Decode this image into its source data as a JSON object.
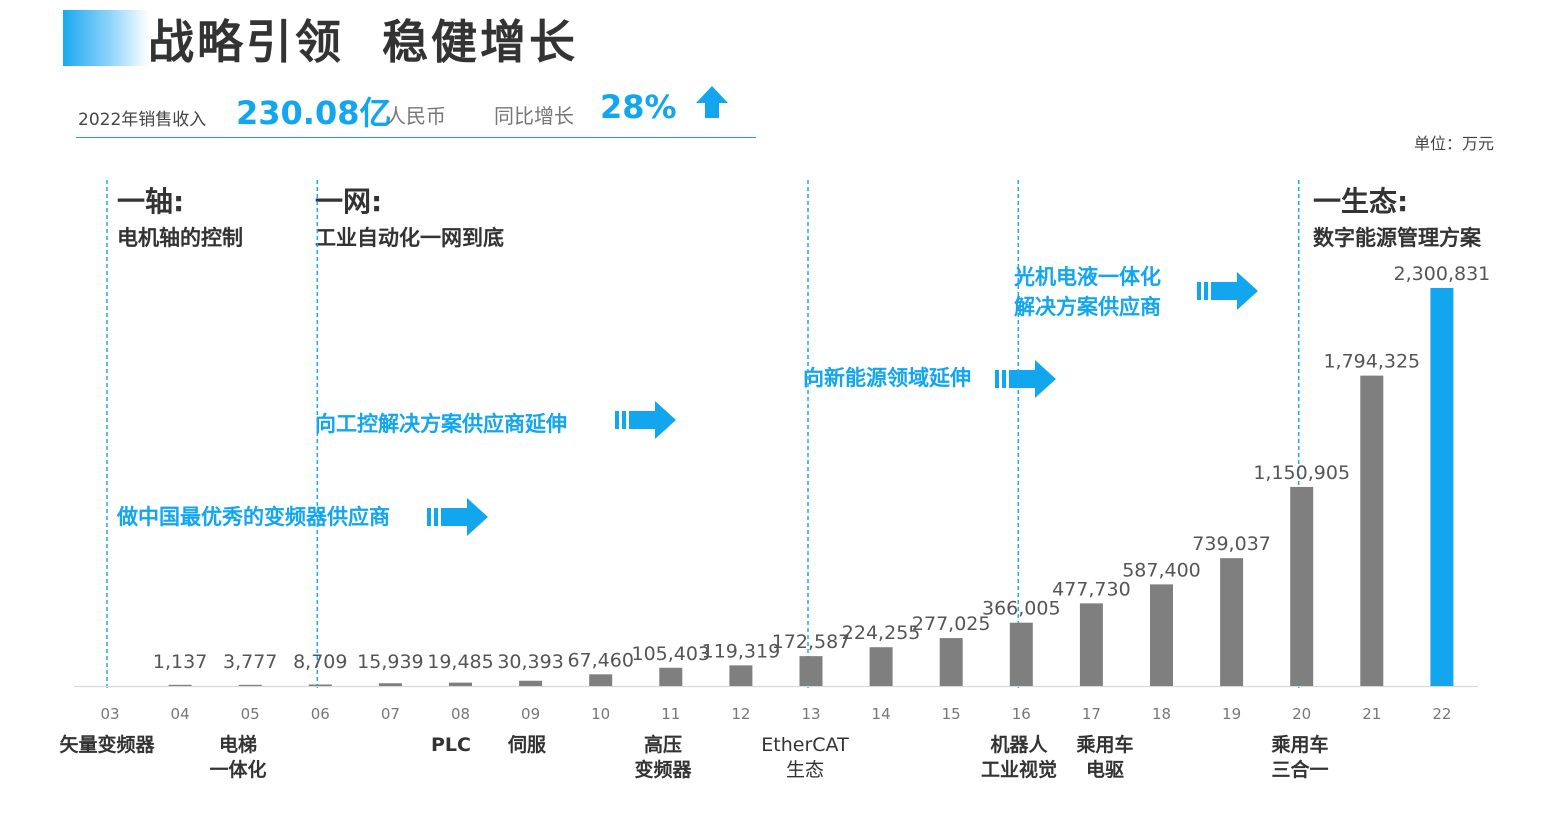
{
  "header": {
    "title": "战略引领  稳健增长"
  },
  "summary": {
    "label_revenue": "2022年销售收入",
    "revenue_value": "230.08亿",
    "revenue_unit": "人民币",
    "label_growth": "同比增长",
    "growth_value": "28%"
  },
  "unit_label": "单位：万元",
  "stages": [
    {
      "head": "一轴:",
      "sub": "电机轴的控制"
    },
    {
      "head": "一网:",
      "sub": "工业自动化一网到底"
    },
    {
      "head": "一生态:",
      "sub": "数字能源管理方案"
    }
  ],
  "arrow_labels": [
    {
      "text": "做中国最优秀的变频器供应商"
    },
    {
      "text": "向工控解决方案供应商延伸"
    },
    {
      "text": "向新能源领域延伸"
    },
    {
      "text": "光机电液一体化\n解决方案供应商"
    }
  ],
  "milestones": [
    {
      "text": "矢量变频器"
    },
    {
      "text": "电梯\n一体化"
    },
    {
      "text": "PLC"
    },
    {
      "text": "伺服"
    },
    {
      "text": "高压\n变频器"
    },
    {
      "text": "EtherCAT\n生态"
    },
    {
      "text": "机器人\n工业视觉"
    },
    {
      "text": "乘用车\n电驱"
    },
    {
      "text": "乘用车\n三合一"
    }
  ],
  "colors": {
    "accent": "#12a6ef",
    "bar": "#7f7f7f",
    "highlight_bar": "#12a6ef",
    "divider": "#1ea8f0"
  },
  "chart_data": {
    "type": "bar",
    "categories": [
      "03",
      "04",
      "05",
      "06",
      "07",
      "08",
      "09",
      "10",
      "11",
      "12",
      "13",
      "14",
      "15",
      "16",
      "17",
      "18",
      "19",
      "20",
      "21",
      "22"
    ],
    "values": [
      null,
      1137,
      3777,
      8709,
      15939,
      19485,
      30393,
      67460,
      105403,
      119319,
      172587,
      224255,
      277025,
      366005,
      477730,
      587400,
      739037,
      1150905,
      1794325,
      2300831
    ],
    "value_labels": [
      "",
      "1,137",
      "3,777",
      "8,709",
      "15,939",
      "19,485",
      "30,393",
      "67,460",
      "105,403",
      "119,319",
      "172,587",
      "224,255",
      "277,025",
      "366,005",
      "477,730",
      "587,400",
      "739,037",
      "1,150,905",
      "1,794,325",
      "2,300,831"
    ],
    "highlight_category": "22",
    "stage_divider_categories": [
      "03",
      "06",
      "13",
      "16",
      "20"
    ],
    "ylim": [
      0,
      2300831
    ],
    "grid": false,
    "legend": "none"
  }
}
